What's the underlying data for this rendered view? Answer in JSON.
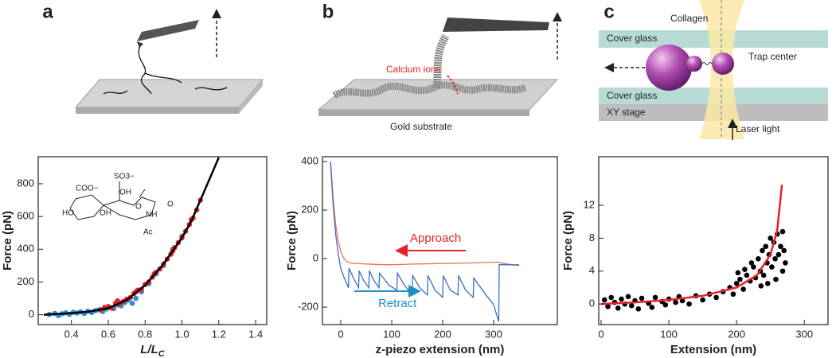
{
  "chart_data": [
    {
      "type": "scatter",
      "panel_label": "a",
      "xlabel": "L/L",
      "xlabel_subscript": "C",
      "ylabel": "Force (pN)",
      "inset_labels": [
        "COO−",
        "SO3−",
        "OH",
        "HO",
        "OH",
        "O",
        "NH",
        "Ac",
        "O"
      ],
      "xlim": [
        0.22,
        1.46
      ],
      "ylim": [
        -60,
        965
      ],
      "xticks": [
        0.4,
        0.6,
        0.8,
        {
          "value": 1,
          "label": "1.0"
        },
        1.2,
        1.4
      ],
      "yticks": [
        0,
        200,
        400,
        600,
        800
      ],
      "series": [
        {
          "kind": "scatter",
          "color": "#2a8fd4",
          "x": [
            0.28,
            0.31,
            0.33,
            0.35,
            0.37,
            0.39,
            0.41,
            0.43,
            0.45,
            0.47,
            0.49,
            0.51,
            0.53,
            0.55,
            0.57,
            0.59,
            0.61,
            0.63,
            0.65,
            0.67,
            0.69,
            0.71,
            0.73,
            0.75,
            0.78,
            0.82,
            0.86,
            0.9,
            0.95,
            1.0
          ],
          "values": [
            2,
            8,
            -5,
            6,
            12,
            3,
            15,
            10,
            18,
            8,
            22,
            14,
            25,
            30,
            20,
            35,
            45,
            38,
            60,
            55,
            75,
            90,
            70,
            100,
            140,
            190,
            250,
            300,
            400,
            480
          ]
        },
        {
          "kind": "scatter",
          "color": "#e3232b",
          "x": [
            0.56,
            0.58,
            0.6,
            0.62,
            0.64,
            0.66,
            0.68,
            0.7,
            0.72,
            0.74,
            0.76,
            0.78,
            0.8,
            0.82,
            0.84,
            0.86,
            0.88,
            0.9,
            0.92,
            0.94,
            0.96,
            0.98,
            1.0,
            1.02,
            1.04,
            1.06,
            1.08,
            1.1,
            0.65,
            0.75,
            0.85,
            0.95,
            1.05
          ],
          "values": [
            30,
            45,
            50,
            40,
            70,
            65,
            80,
            95,
            105,
            130,
            150,
            155,
            185,
            200,
            230,
            260,
            280,
            310,
            340,
            370,
            410,
            440,
            470,
            510,
            550,
            590,
            640,
            700,
            85,
            140,
            250,
            390,
            580
          ]
        },
        {
          "kind": "line",
          "color": "#000000",
          "x": [
            0.25,
            0.4,
            0.5,
            0.6,
            0.7,
            0.8,
            0.9,
            1.0,
            1.05,
            1.1,
            1.15,
            1.2
          ],
          "values": [
            0,
            10,
            20,
            40,
            90,
            180,
            310,
            470,
            570,
            700,
            830,
            960
          ]
        }
      ]
    },
    {
      "type": "line",
      "panel_label": "b",
      "illustration_labels": [
        "Calcium ions",
        "Gold substrate"
      ],
      "xlabel": "z-piezo extension (nm)",
      "ylabel": "Force (pN)",
      "xlim": [
        -36,
        425
      ],
      "ylim": [
        -272,
        420
      ],
      "xticks": [
        0,
        100,
        200,
        300
      ],
      "yticks": [
        -200,
        0,
        200,
        400
      ],
      "annotations": [
        {
          "text": "Approach",
          "color": "#e3232b"
        },
        {
          "text": "Retract",
          "color": "#1f8fc8"
        }
      ],
      "series": [
        {
          "name": "Approach",
          "color": "#f07060",
          "x": [
            -20,
            -15,
            -10,
            -5,
            0,
            5,
            10,
            20,
            30,
            50,
            80,
            100,
            150,
            200,
            250,
            300,
            310,
            320,
            335,
            350
          ],
          "values": [
            400,
            250,
            140,
            70,
            30,
            5,
            -10,
            -18,
            -20,
            -22,
            -25,
            -25,
            -22,
            -20,
            -18,
            -15,
            -15,
            -20,
            -25,
            -25
          ]
        },
        {
          "name": "Retract",
          "color": "#3a6fc0",
          "x": [
            -20,
            -15,
            -10,
            -5,
            0,
            5,
            15,
            16,
            25,
            35,
            36,
            45,
            55,
            56,
            65,
            75,
            76,
            95,
            110,
            111,
            125,
            140,
            141,
            155,
            170,
            171,
            185,
            200,
            201,
            215,
            230,
            231,
            245,
            260,
            261,
            285,
            300,
            310,
            311,
            330,
            350
          ],
          "values": [
            400,
            220,
            100,
            20,
            -40,
            -70,
            -120,
            -40,
            -80,
            -120,
            -50,
            -90,
            -120,
            -50,
            -90,
            -120,
            -60,
            -110,
            -130,
            -60,
            -110,
            -150,
            -70,
            -120,
            -150,
            -70,
            -130,
            -160,
            -70,
            -130,
            -150,
            -70,
            -130,
            -160,
            -80,
            -150,
            -190,
            -260,
            -25,
            -25,
            -28
          ]
        }
      ]
    },
    {
      "type": "scatter",
      "panel_label": "c",
      "illustration_labels": [
        "Cover glass",
        "Cover glass",
        "XY stage",
        "Collagen",
        "Trap center",
        "Laser light"
      ],
      "xlabel": "Extension (nm)",
      "ylabel": "Force (pN)",
      "xlim": [
        -3.5,
        335
      ],
      "ylim": [
        -2.5,
        17.9
      ],
      "xticks": [
        0,
        100,
        200,
        300
      ],
      "yticks": [
        0,
        4,
        8,
        12
      ],
      "series": [
        {
          "kind": "scatter",
          "color": "#000000",
          "x": [
            5,
            10,
            15,
            20,
            25,
            30,
            35,
            40,
            45,
            50,
            55,
            60,
            70,
            75,
            80,
            90,
            95,
            100,
            110,
            115,
            120,
            130,
            140,
            150,
            160,
            170,
            180,
            190,
            195,
            200,
            205,
            210,
            215,
            220,
            225,
            228,
            232,
            235,
            238,
            240,
            243,
            245,
            248,
            250,
            252,
            255,
            257,
            260,
            262,
            265,
            268,
            270,
            272,
            268,
            258,
            246,
            236,
            222,
            212,
            202
          ],
          "values": [
            0.5,
            -0.3,
            0.8,
            0.2,
            -0.5,
            0.6,
            0,
            0.9,
            -0.2,
            0.4,
            -0.6,
            0.7,
            0.1,
            -0.4,
            0.8,
            0.3,
            -0.1,
            0.6,
            0.2,
            0.9,
            0.4,
            0,
            1,
            0.5,
            1.2,
            0.8,
            1.5,
            2,
            1.2,
            2.5,
            3,
            1.8,
            3.5,
            2.8,
            4.5,
            3.2,
            5.5,
            4,
            6.5,
            3.5,
            7,
            5,
            6,
            8,
            4.5,
            7.5,
            5.5,
            8.5,
            6,
            7,
            8.8,
            6.5,
            5,
            4,
            3,
            2.5,
            2.2,
            5,
            4.2,
            3.8
          ]
        },
        {
          "kind": "line",
          "color": "#e3232b",
          "x": [
            0,
            50,
            100,
            150,
            200,
            230,
            250,
            260,
            267
          ],
          "values": [
            0,
            0.2,
            0.5,
            1,
            2,
            3.5,
            6,
            9,
            14.5
          ]
        }
      ]
    }
  ]
}
